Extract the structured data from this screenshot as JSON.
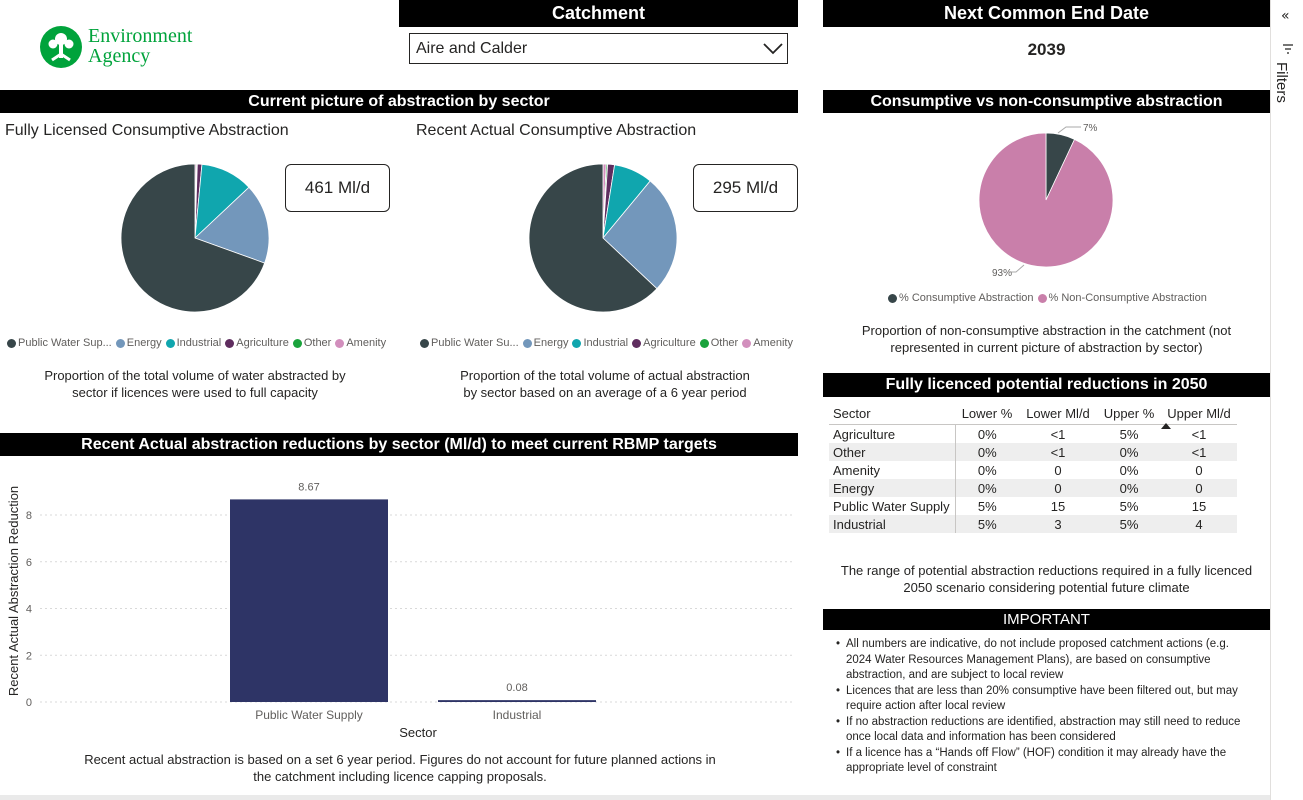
{
  "logo": {
    "line1": "Environment",
    "line2": "Agency"
  },
  "catchment": {
    "title": "Catchment",
    "selected": "Aire and Calder"
  },
  "end_date": {
    "title": "Next Common End Date",
    "value": "2039"
  },
  "sector_section": {
    "title": "Current picture of abstraction by sector"
  },
  "licensed": {
    "title": "Fully Licensed Consumptive Abstraction",
    "card": "461 Ml/d",
    "caption_line1": "Proportion of the total volume of water abstracted by",
    "caption_line2": "sector if licences were used to full capacity",
    "chart_data": {
      "type": "pie",
      "title": "Fully Licensed Consumptive Abstraction",
      "categories": [
        "Public Water Supply",
        "Energy",
        "Industrial",
        "Agriculture",
        "Other",
        "Amenity"
      ],
      "values": [
        69.5,
        17.5,
        11.5,
        1.0,
        0.2,
        0.3
      ]
    }
  },
  "actual": {
    "title": "Recent Actual Consumptive Abstraction",
    "card": "295 Ml/d",
    "caption_line1": "Proportion of the total volume of actual abstraction",
    "caption_line2": "by sector based on an average of a 6 year period",
    "chart_data": {
      "type": "pie",
      "title": "Recent Actual Consumptive Abstraction",
      "categories": [
        "Public Water Supply",
        "Energy",
        "Industrial",
        "Agriculture",
        "Other",
        "Amenity"
      ],
      "values": [
        63.0,
        26.0,
        8.5,
        1.5,
        0.3,
        0.7
      ]
    }
  },
  "legend": {
    "items": [
      {
        "label": "Public Water Sup...",
        "color": "#374649"
      },
      {
        "label": "Energy",
        "color": "#7397bb"
      },
      {
        "label": "Industrial",
        "color": "#10a6ae"
      },
      {
        "label": "Agriculture",
        "color": "#5f2d5f"
      },
      {
        "label": "Other",
        "color": "#1aa33c"
      },
      {
        "label": "Amenity",
        "color": "#d28fbd"
      }
    ],
    "items_actual": [
      {
        "label": "Public Water Su...",
        "color": "#374649"
      },
      {
        "label": "Energy",
        "color": "#7397bb"
      },
      {
        "label": "Industrial",
        "color": "#10a6ae"
      },
      {
        "label": "Agriculture",
        "color": "#5f2d5f"
      },
      {
        "label": "Other",
        "color": "#1aa33c"
      },
      {
        "label": "Amenity",
        "color": "#d28fbd"
      }
    ]
  },
  "consumptive": {
    "title": "Consumptive vs non-consumptive abstraction",
    "label_small": "7%",
    "label_large": "93%",
    "legend": [
      {
        "label": "% Consumptive Abstraction",
        "color": "#374649"
      },
      {
        "label": "% Non-Consumptive Abstraction",
        "color": "#c97faa"
      }
    ],
    "caption_line1": "Proportion of non-consumptive abstraction in the catchment (not",
    "caption_line2": "represented in current picture of abstraction by sector)",
    "chart_data": {
      "type": "pie",
      "categories": [
        "% Consumptive Abstraction",
        "% Non-Consumptive Abstraction"
      ],
      "values": [
        7,
        93
      ]
    }
  },
  "reductions": {
    "title": "Fully licenced potential reductions in 2050",
    "columns": [
      "Sector",
      "Lower %",
      "Lower Ml/d",
      "Upper %",
      "Upper Ml/d"
    ],
    "rows": [
      [
        "Agriculture",
        "0%",
        "<1",
        "5%",
        "<1"
      ],
      [
        "Other",
        "0%",
        "<1",
        "0%",
        "<1"
      ],
      [
        "Amenity",
        "0%",
        "0",
        "0%",
        "0"
      ],
      [
        "Energy",
        "0%",
        "0",
        "0%",
        "0"
      ],
      [
        "Public Water Supply",
        "5%",
        "15",
        "5%",
        "15"
      ],
      [
        "Industrial",
        "5%",
        "3",
        "5%",
        "4"
      ]
    ],
    "caption_line1": "The range of potential abstraction reductions required in a fully licenced",
    "caption_line2": "2050 scenario considering potential future climate"
  },
  "important": {
    "title": "IMPORTANT",
    "items": [
      {
        "l1": "All numbers are indicative, do not include proposed catchment actions (e.g.",
        "l2": "2024 Water Resources Management Plans), are based on consumptive",
        "l3": "abstraction, and are subject to local review"
      },
      {
        "l1": "Licences that are less than 20% consumptive have been filtered out, but may",
        "l2": "require action after local review",
        "l3": ""
      },
      {
        "l1": "If no abstraction reductions are identified, abstraction may still need to reduce",
        "l2": "once local data and information has been considered",
        "l3": ""
      },
      {
        "l1": "If a licence has a “Hands off Flow” (HOF) condition it may already have the",
        "l2": "appropriate level of constraint",
        "l3": ""
      }
    ]
  },
  "bar_section": {
    "title": "Recent Actual abstraction reductions by sector (Ml/d) to meet current RBMP targets",
    "caption_line1": "Recent actual abstraction is based on a set 6 year period. Figures do not account for future planned actions in",
    "caption_line2": "the catchment including licence capping proposals.",
    "chart_data": {
      "type": "bar",
      "categories": [
        "Public Water Supply",
        "Industrial"
      ],
      "values": [
        8.67,
        0.08
      ],
      "value_labels": [
        "8.67",
        "0.08"
      ],
      "xlabel": "Sector",
      "ylabel": "Recent Actual Abstraction Reduction",
      "ylim": [
        0,
        9.5
      ],
      "yticks": [
        0,
        2,
        4,
        6,
        8
      ],
      "bar_color": "#2e3466"
    }
  },
  "filters": {
    "label": "Filters",
    "collapse": "«"
  }
}
